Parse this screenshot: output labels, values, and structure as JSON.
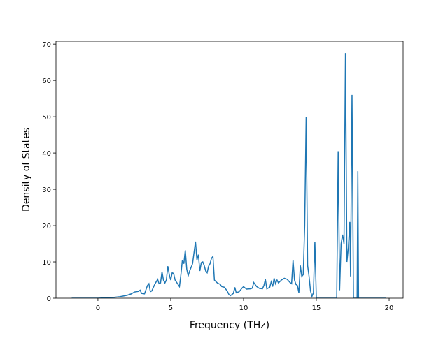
{
  "chart_data": {
    "type": "line",
    "xlabel": "Frequency (THz)",
    "ylabel": "Density of States",
    "xlim": [
      -2.88,
      20.96
    ],
    "ylim": [
      0,
      70.8
    ],
    "xticks": [
      0,
      5,
      10,
      15,
      20
    ],
    "yticks": [
      0,
      10,
      20,
      30,
      40,
      50,
      60,
      70
    ],
    "series": [
      {
        "color": "#1f77b4",
        "x": [
          -1.8,
          -1.0,
          0,
          0.5,
          1.0,
          1.5,
          2.0,
          2.3,
          2.5,
          2.8,
          2.9,
          3.0,
          3.2,
          3.4,
          3.5,
          3.6,
          3.7,
          3.9,
          4.1,
          4.2,
          4.3,
          4.4,
          4.5,
          4.6,
          4.7,
          4.8,
          4.9,
          5.0,
          5.1,
          5.2,
          5.3,
          5.5,
          5.6,
          5.7,
          5.8,
          5.9,
          6.0,
          6.1,
          6.2,
          6.3,
          6.5,
          6.7,
          6.8,
          6.9,
          7.0,
          7.1,
          7.2,
          7.3,
          7.4,
          7.5,
          7.6,
          7.7,
          7.8,
          7.9,
          8.0,
          8.2,
          8.4,
          8.5,
          8.7,
          8.9,
          9.0,
          9.1,
          9.3,
          9.4,
          9.5,
          9.7,
          9.9,
          10.0,
          10.2,
          10.5,
          10.6,
          10.7,
          10.9,
          11.1,
          11.3,
          11.4,
          11.5,
          11.6,
          11.8,
          11.9,
          12.0,
          12.1,
          12.2,
          12.3,
          12.4,
          12.6,
          12.8,
          13.0,
          13.2,
          13.3,
          13.4,
          13.5,
          13.6,
          13.7,
          13.8,
          13.9,
          14.0,
          14.1,
          14.2,
          14.3,
          14.4,
          14.5,
          14.6,
          14.7,
          14.8,
          14.9,
          15.0,
          15.5,
          16.3,
          16.4,
          16.5,
          16.6,
          16.7,
          16.8,
          16.9,
          17.0,
          17.1,
          17.2,
          17.3,
          17.35,
          17.45,
          17.55,
          17.75,
          17.8,
          17.85,
          17.9,
          19.8
        ],
        "values": [
          0,
          0,
          0,
          0.1,
          0.2,
          0.4,
          0.8,
          1.2,
          1.7,
          1.9,
          2.2,
          1.3,
          1.2,
          3.5,
          4.0,
          1.8,
          2.0,
          3.8,
          5.2,
          4.0,
          4.2,
          7.3,
          5.0,
          4.2,
          5.0,
          8.8,
          6.5,
          5.0,
          7.0,
          6.8,
          5.0,
          3.8,
          3.2,
          6.5,
          10.5,
          9.5,
          13.2,
          8.0,
          6.2,
          7.5,
          9.5,
          15.6,
          10.5,
          12.0,
          7.5,
          9.8,
          10.0,
          9.0,
          7.5,
          7.0,
          8.8,
          9.5,
          11.0,
          11.5,
          5.0,
          4.2,
          3.8,
          3.2,
          3.0,
          1.8,
          1.0,
          0.7,
          1.3,
          3.0,
          1.5,
          1.8,
          2.8,
          3.2,
          2.5,
          2.6,
          2.8,
          4.3,
          3.2,
          2.7,
          2.6,
          3.5,
          5.2,
          2.6,
          3.0,
          4.5,
          3.2,
          5.5,
          4.0,
          5.0,
          4.2,
          5.0,
          5.5,
          5.2,
          4.3,
          4.0,
          10.5,
          5.0,
          3.8,
          3.5,
          1.5,
          9.0,
          6.0,
          6.5,
          20,
          50,
          9.0,
          6.0,
          2.0,
          0.5,
          1.5,
          15.5,
          0,
          0,
          0,
          0,
          40.5,
          2.2,
          15,
          17.5,
          15,
          67.5,
          10.0,
          14,
          21,
          6,
          56,
          0,
          0,
          0,
          35,
          0,
          0
        ]
      }
    ]
  }
}
